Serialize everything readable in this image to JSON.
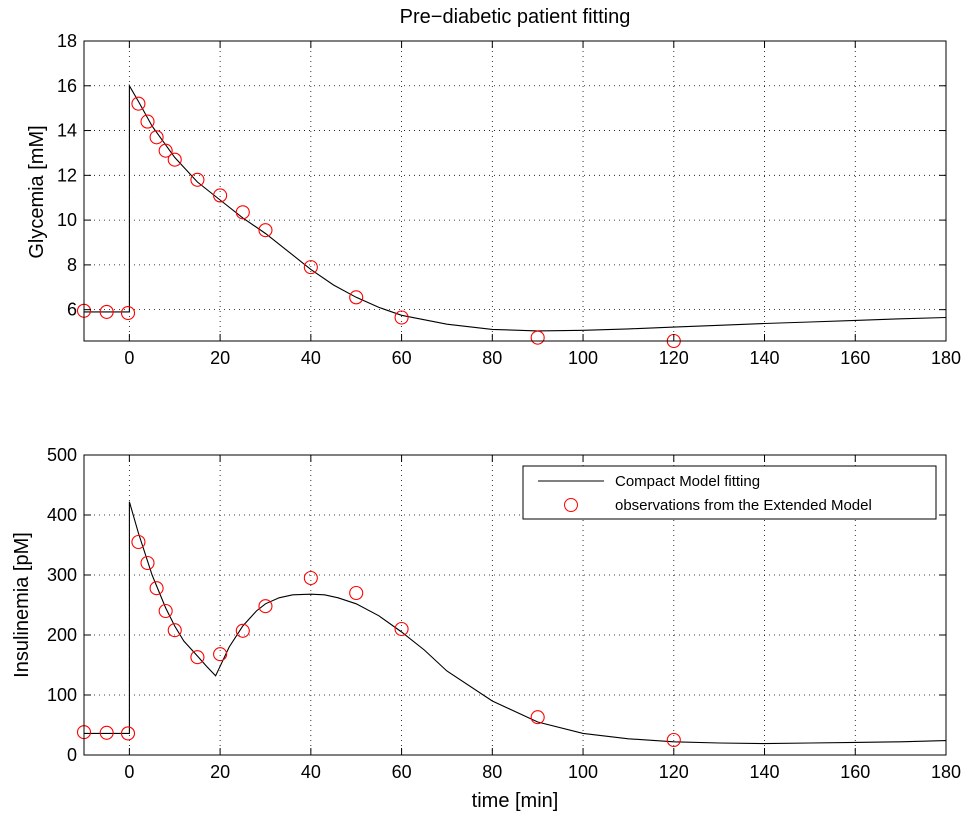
{
  "chart_data": [
    {
      "type": "line",
      "title": "Pre−diabetic patient fitting",
      "xlabel": "",
      "ylabel": "Glycemia [mM]",
      "xlim": [
        -10,
        180
      ],
      "ylim": [
        4.6,
        18
      ],
      "xticks": [
        0,
        20,
        40,
        60,
        80,
        100,
        120,
        140,
        160,
        180
      ],
      "yticks": [
        6,
        8,
        10,
        12,
        14,
        16,
        18
      ],
      "grid": true,
      "series": [
        {
          "kind": "line",
          "color": "#000000",
          "x": [
            -10,
            0,
            0,
            2,
            5,
            10,
            15,
            20,
            25,
            30,
            35,
            40,
            45,
            50,
            55,
            60,
            70,
            80,
            90,
            100,
            110,
            120,
            130,
            140,
            150,
            160,
            170,
            180
          ],
          "y": [
            5.9,
            5.9,
            16.0,
            15.3,
            14.2,
            12.8,
            11.7,
            10.9,
            10.1,
            9.4,
            8.6,
            7.8,
            7.1,
            6.55,
            6.1,
            5.75,
            5.35,
            5.12,
            5.05,
            5.08,
            5.14,
            5.22,
            5.3,
            5.38,
            5.45,
            5.52,
            5.59,
            5.65
          ]
        },
        {
          "kind": "scatter",
          "color": "#ff0000",
          "x": [
            -10,
            -5,
            -0.3,
            2,
            4,
            6,
            8,
            10,
            15,
            20,
            25,
            30,
            40,
            50,
            60,
            90,
            120
          ],
          "y": [
            5.95,
            5.9,
            5.85,
            15.2,
            14.4,
            13.7,
            13.1,
            12.7,
            11.8,
            11.1,
            10.35,
            9.55,
            7.9,
            6.55,
            5.65,
            4.75,
            4.6
          ]
        }
      ]
    },
    {
      "type": "line",
      "title": "",
      "xlabel": "time [min]",
      "ylabel": "Insulinemia [pM]",
      "xlim": [
        -10,
        180
      ],
      "ylim": [
        0,
        500
      ],
      "xticks": [
        0,
        20,
        40,
        60,
        80,
        100,
        120,
        140,
        160,
        180
      ],
      "yticks": [
        0,
        100,
        200,
        300,
        400,
        500
      ],
      "grid": true,
      "legend": {
        "position": "top-right",
        "entries": [
          "Compact Model fitting",
          "observations from the Extended Model"
        ]
      },
      "series": [
        {
          "name": "Compact Model fitting",
          "kind": "line",
          "color": "#000000",
          "x": [
            -10,
            0,
            0,
            2,
            5,
            8,
            10,
            12,
            15,
            17,
            19,
            22,
            25,
            28,
            30,
            33,
            36,
            40,
            43,
            46,
            50,
            55,
            60,
            65,
            70,
            80,
            90,
            100,
            110,
            120,
            130,
            140,
            150,
            160,
            170,
            180
          ],
          "y": [
            36,
            36,
            422,
            370,
            300,
            245,
            215,
            190,
            165,
            148,
            132,
            180,
            215,
            240,
            252,
            262,
            267,
            268,
            267,
            262,
            252,
            232,
            205,
            175,
            140,
            90,
            55,
            36,
            27,
            22,
            20,
            19,
            20,
            21,
            22,
            24
          ]
        },
        {
          "name": "observations from the Extended Model",
          "kind": "scatter",
          "color": "#ff0000",
          "x": [
            -10,
            -5,
            -0.3,
            2,
            4,
            6,
            8,
            10,
            15,
            20,
            25,
            30,
            40,
            50,
            60,
            90,
            120
          ],
          "y": [
            38,
            37,
            36,
            355,
            320,
            278,
            240,
            208,
            163,
            168,
            207,
            248,
            295,
            270,
            210,
            63,
            25
          ]
        }
      ]
    }
  ]
}
